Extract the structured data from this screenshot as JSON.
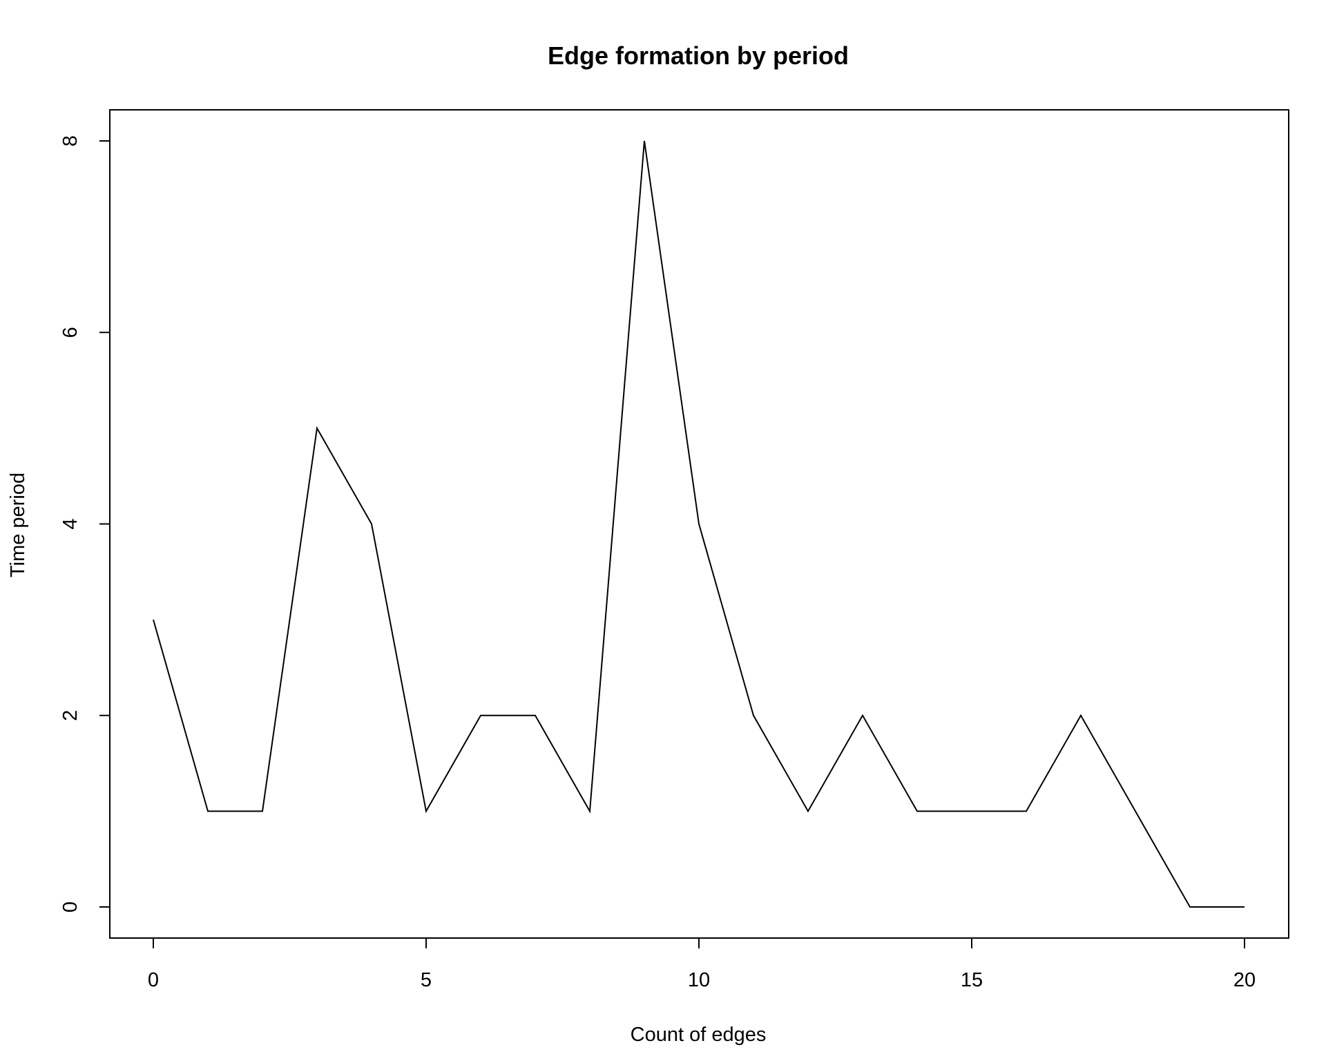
{
  "chart_data": {
    "type": "line",
    "title": "Edge formation by period",
    "xlabel": "Count of edges",
    "ylabel": "Time period",
    "xlim": [
      0,
      20
    ],
    "ylim": [
      0,
      8
    ],
    "xticks": [
      "0",
      "5",
      "10",
      "15",
      "20"
    ],
    "yticks": [
      "0",
      "2",
      "4",
      "6",
      "8"
    ],
    "grid": false,
    "legend": "none",
    "line_color": "#000000",
    "series": [
      {
        "x": [
          0,
          1,
          2,
          3,
          4,
          5,
          6,
          7,
          8,
          9,
          10,
          11,
          12,
          13,
          14,
          15,
          16,
          17,
          18,
          19,
          20
        ],
        "y": [
          3,
          1,
          1,
          5,
          4,
          1,
          2,
          2,
          1,
          8,
          4,
          2,
          1,
          2,
          1,
          1,
          1,
          2,
          1,
          0,
          0
        ]
      }
    ]
  }
}
